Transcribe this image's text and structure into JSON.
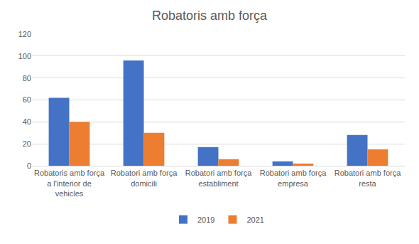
{
  "chart_data": {
    "type": "bar",
    "title": "Robatoris amb força",
    "categories": [
      "Robatoris amb força a l'interior de vehicles",
      "Robatori amb força domicili",
      "Robatori amb força establiment",
      "Robatori amb força empresa",
      "Robatori amb força resta"
    ],
    "series": [
      {
        "name": "2019",
        "color": "#4472c4",
        "values": [
          62,
          96,
          17,
          4,
          28
        ]
      },
      {
        "name": "2021",
        "color": "#ed7d31",
        "values": [
          40,
          30,
          6,
          2,
          15
        ]
      }
    ],
    "ylim": [
      0,
      120
    ],
    "yticks": [
      0,
      20,
      40,
      60,
      80,
      100,
      120
    ],
    "grid": true,
    "legend": "bottom"
  }
}
